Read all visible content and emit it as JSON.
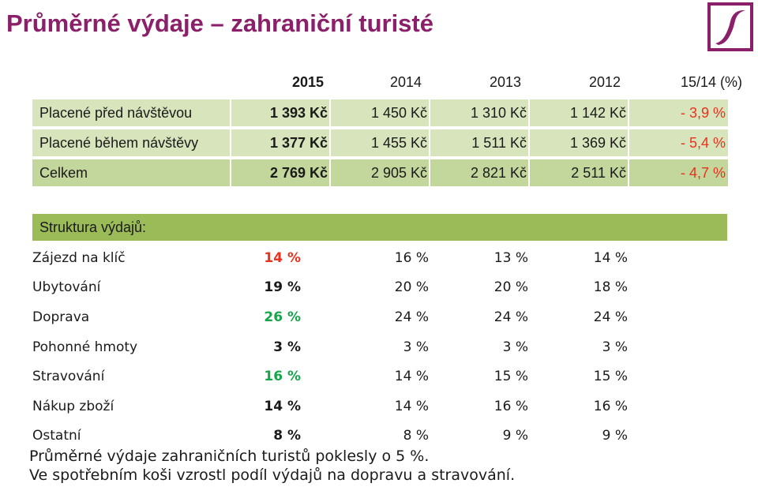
{
  "title": "Průměrné výdaje – zahraniční turisté",
  "logo_icon": "pen-stroke-logo-icon",
  "colors": {
    "title": "#8b1f6a",
    "row_light": "#d8e4bc",
    "row_dark": "#c3d69b",
    "section_bar": "#9bbb59",
    "negative": "#e8321e",
    "increase": "#17a54a"
  },
  "columns": [
    "2015",
    "2014",
    "2013",
    "2012",
    "15/14 (%)"
  ],
  "spending": [
    {
      "label": "Placené před návštěvou",
      "v2015": "1 393 Kč",
      "v2014": "1 450 Kč",
      "v2013": "1 310 Kč",
      "v2012": "1 142 Kč",
      "change": "- 3,9 %"
    },
    {
      "label": "Placené během návštěvy",
      "v2015": "1 377 Kč",
      "v2014": "1 455 Kč",
      "v2013": "1 511 Kč",
      "v2012": "1 369 Kč",
      "change": "- 5,4 %"
    },
    {
      "label": "Celkem",
      "v2015": "2 769 Kč",
      "v2014": "2 905 Kč",
      "v2013": "2 821 Kč",
      "v2012": "2 511 Kč",
      "change": "- 4,7 %"
    }
  ],
  "structure_title": "Struktura výdajů:",
  "structure": [
    {
      "label": "Zájezd na klíč",
      "v2015": "14 %",
      "v2014": "16 %",
      "v2013": "13 %",
      "v2012": "14 %",
      "color2015": "red"
    },
    {
      "label": "Ubytování",
      "v2015": "19 %",
      "v2014": "20 %",
      "v2013": "20 %",
      "v2012": "18 %",
      "color2015": "black"
    },
    {
      "label": "Doprava",
      "v2015": "26 %",
      "v2014": "24 %",
      "v2013": "24 %",
      "v2012": "24 %",
      "color2015": "green"
    },
    {
      "label": "Pohonné hmoty",
      "v2015": "3 %",
      "v2014": "3 %",
      "v2013": "3 %",
      "v2012": "3 %",
      "color2015": "black"
    },
    {
      "label": "Stravování",
      "v2015": "16 %",
      "v2014": "14 %",
      "v2013": "15 %",
      "v2012": "15 %",
      "color2015": "green"
    },
    {
      "label": "Nákup zboží",
      "v2015": "14 %",
      "v2014": "14 %",
      "v2013": "16 %",
      "v2012": "16 %",
      "color2015": "black"
    },
    {
      "label": "Ostatní",
      "v2015": "8 %",
      "v2014": "8 %",
      "v2013": "9 %",
      "v2012": "9 %",
      "color2015": "black"
    }
  ],
  "notes": [
    "Průměrné výdaje zahraničních turistů poklesly o 5 %.",
    "Ve spotřebním koši vzrostl podíl výdajů na dopravu a stravování."
  ]
}
